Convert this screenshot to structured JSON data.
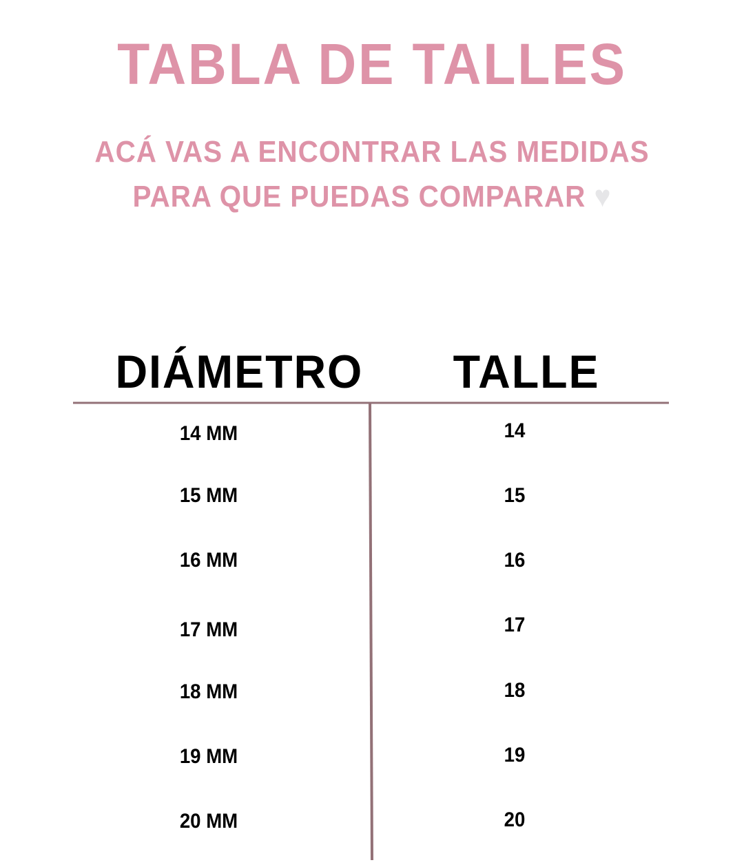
{
  "title": "TABLA DE TALLES",
  "subtitle": {
    "line1": "ACÁ VAS A ENCONTRAR LAS MEDIDAS",
    "line2": "PARA QUE PUEDAS COMPARAR",
    "icon": "heart-icon"
  },
  "colors": {
    "accent": "#de93a8",
    "divider": "#937177",
    "heart": "#e6e6e8"
  },
  "table": {
    "headers": [
      "DIÁMETRO",
      "TALLE"
    ],
    "rows": [
      [
        "14 MM",
        "14"
      ],
      [
        "15 MM",
        "15"
      ],
      [
        "16 MM",
        "16"
      ],
      [
        "17 MM",
        "17"
      ],
      [
        "18 MM",
        "18"
      ],
      [
        "19 MM",
        "19"
      ],
      [
        "20 MM",
        "20"
      ]
    ]
  }
}
